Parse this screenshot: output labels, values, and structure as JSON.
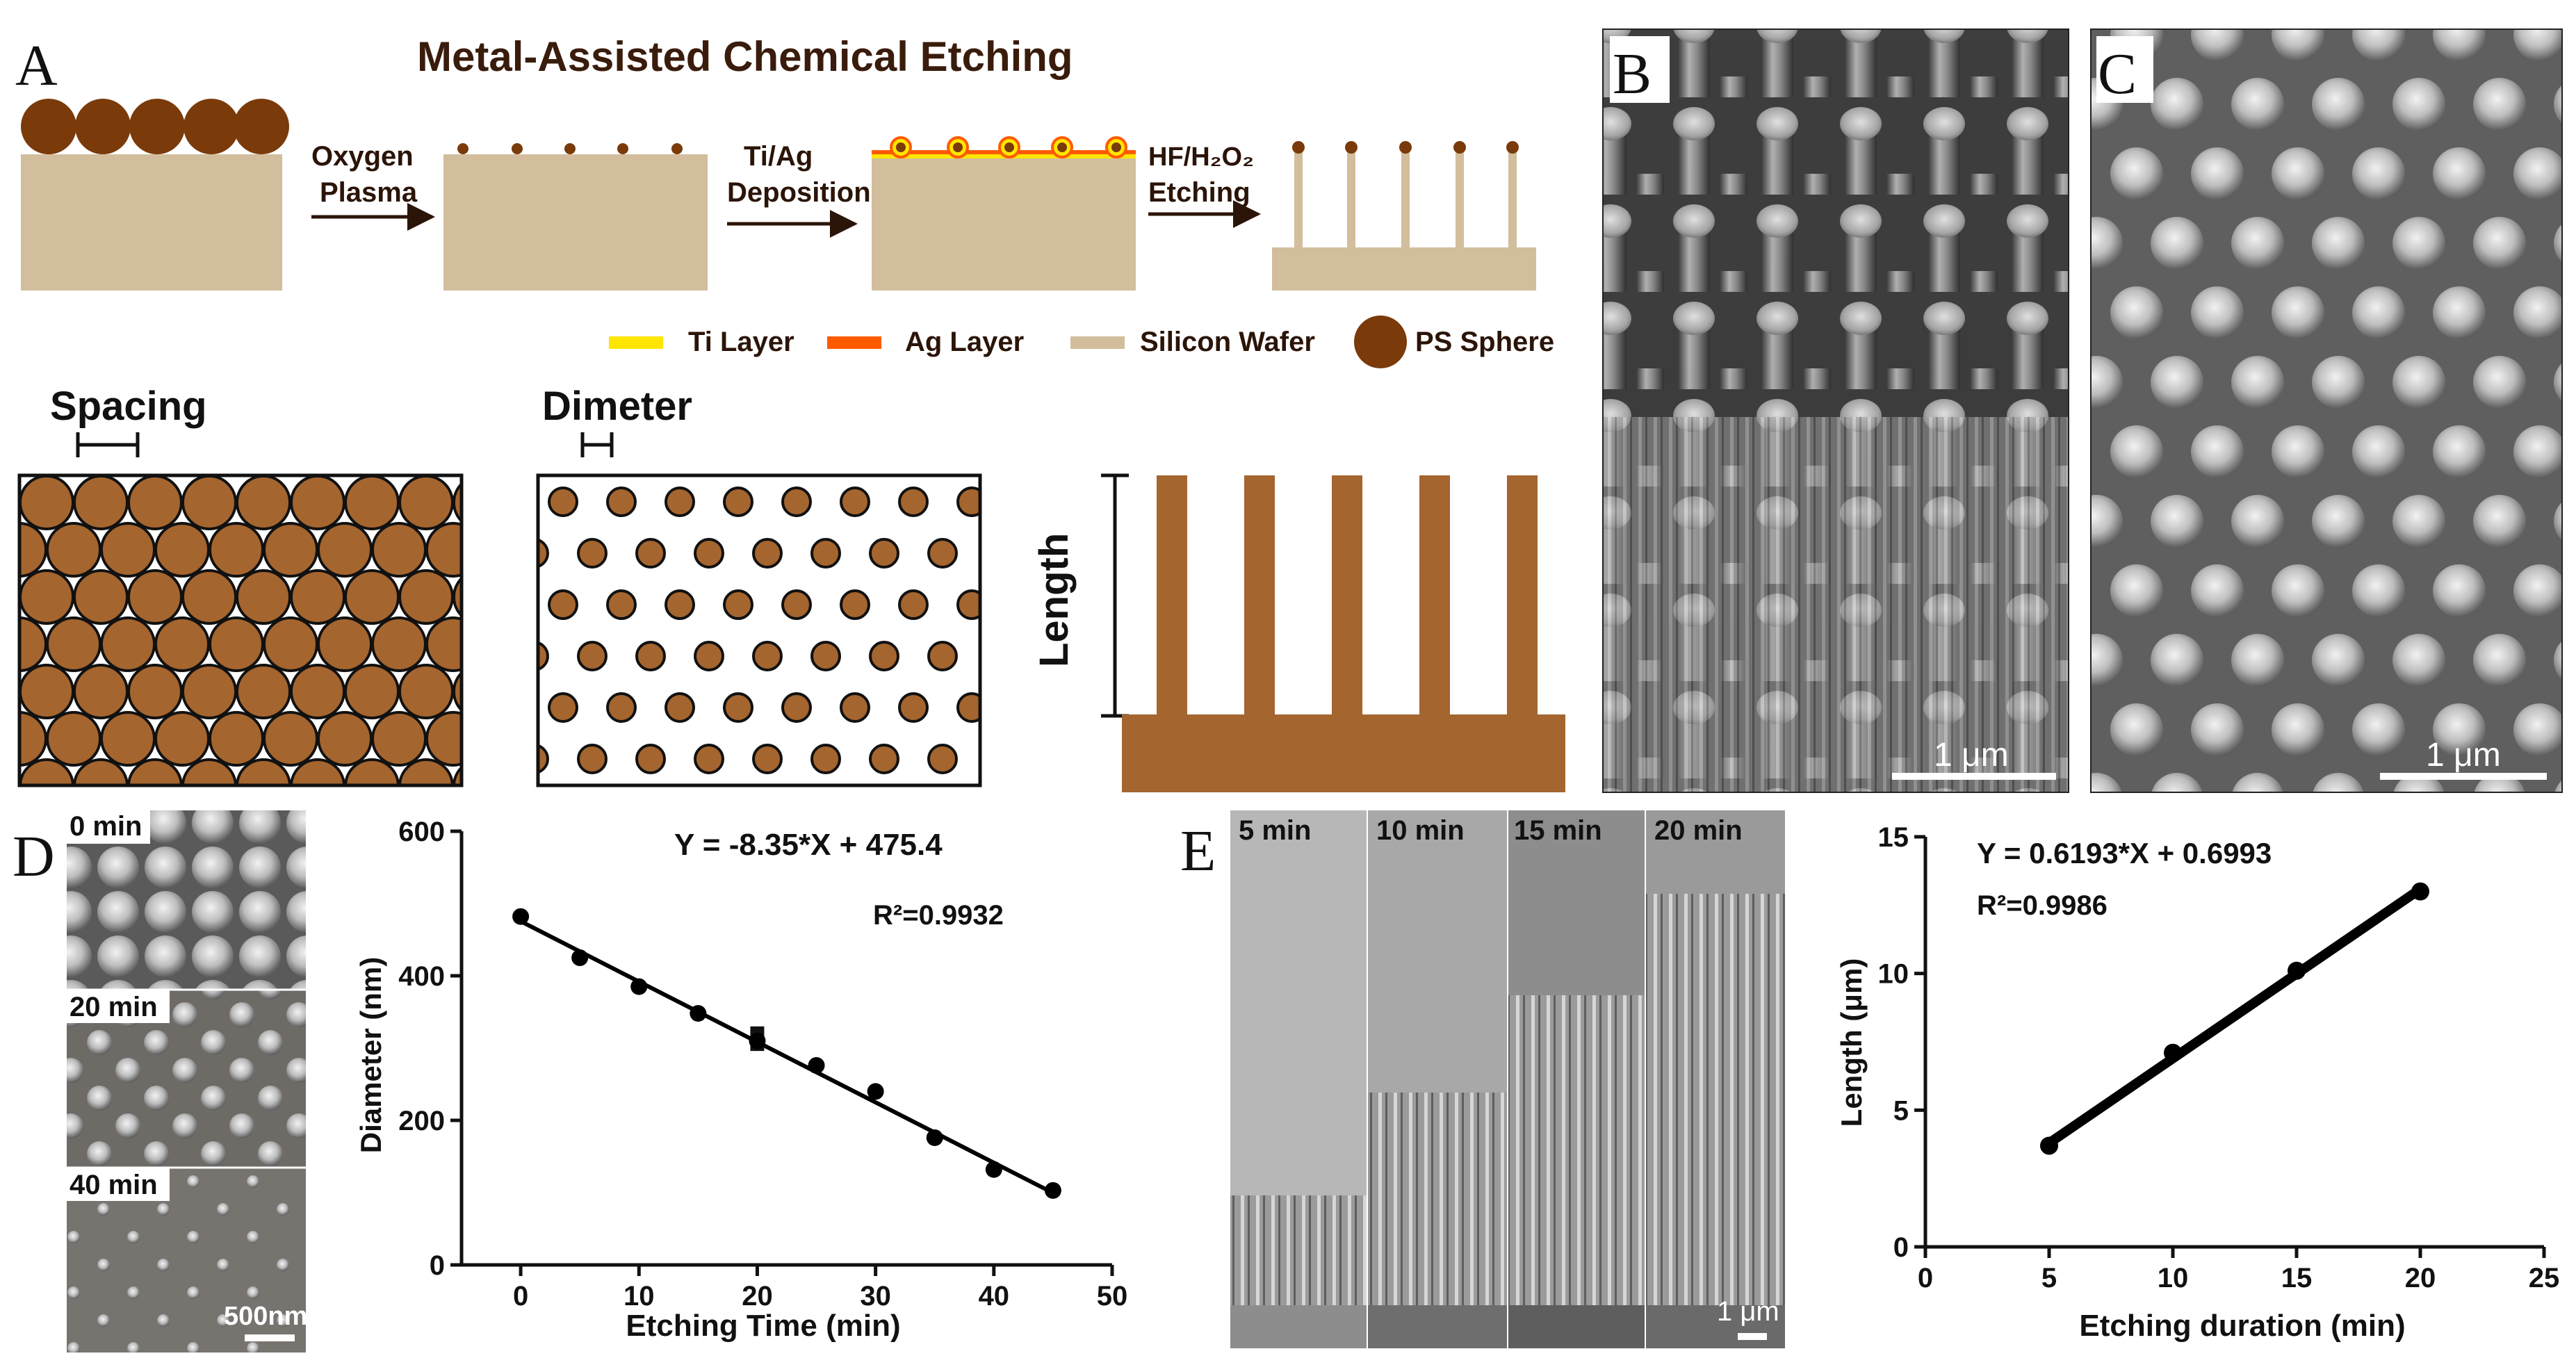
{
  "panels": {
    "a": "A",
    "b": "B",
    "c": "C",
    "d": "D",
    "e": "E"
  },
  "title": "Metal-Assisted Chemical Etching",
  "steps": {
    "s1": [
      "Oxygen",
      "Plasma"
    ],
    "s2": [
      "Ti/Ag",
      "Deposition"
    ],
    "s3": [
      "HF/H₂O₂",
      "Etching"
    ]
  },
  "legend": {
    "ti": "Ti Layer",
    "ag": "Ag Layer",
    "si": "Silicon Wafer",
    "ps": "PS Sphere"
  },
  "labels": {
    "spacing": "Spacing",
    "dimeter": "Dimeter",
    "length": "Length"
  },
  "sem": {
    "scale_b": "1 μm",
    "scale_c": "1 μm",
    "d_times": [
      "0 min",
      "20 min",
      "40 min"
    ],
    "d_scale": "500nm",
    "e_times": [
      "5 min",
      "10 min",
      "15 min",
      "20 min"
    ],
    "e_scale": "1 μm"
  },
  "colors": {
    "ps": "#7a3a0a",
    "silicon": "#d2be9c",
    "brown_fill": "#a5652f",
    "ti": "#ffe600",
    "ag": "#ff5a00",
    "arrow": "#2b1408"
  },
  "chart_data": [
    {
      "type": "scatter",
      "xlabel": "Etching Time (min)",
      "ylabel": "Diameter (nm)",
      "xlim": [
        -5,
        50
      ],
      "ylim": [
        0,
        600
      ],
      "xticks": [
        0,
        10,
        20,
        30,
        40,
        50
      ],
      "yticks": [
        0,
        200,
        400,
        600
      ],
      "x": [
        0,
        5,
        10,
        15,
        20,
        25,
        30,
        35,
        40,
        45
      ],
      "y": [
        482,
        425,
        385,
        348,
        310,
        276,
        240,
        176,
        132,
        103
      ],
      "errorbars": [
        {
          "x": 20,
          "low": 296,
          "high": 330
        }
      ],
      "fit": {
        "slope": -8.35,
        "intercept": 475.4,
        "x_range": [
          0,
          45
        ]
      },
      "annotations": [
        "Y = -8.35*X + 475.4",
        "R²=0.9932"
      ]
    },
    {
      "type": "line",
      "xlabel": "Etching duration (min)",
      "ylabel": "Length  (μm)",
      "xlim": [
        0,
        25
      ],
      "ylim": [
        0,
        15
      ],
      "xticks": [
        0,
        5,
        10,
        15,
        20,
        25
      ],
      "yticks": [
        0,
        5,
        10,
        15
      ],
      "x": [
        5,
        10,
        15,
        20
      ],
      "y": [
        3.7,
        7.1,
        10.1,
        13.0
      ],
      "fit": {
        "slope": 0.6193,
        "intercept": 0.6993,
        "x_range": [
          5,
          20
        ]
      },
      "annotations": [
        "Y = 0.6193*X + 0.6993",
        "R²=0.9986"
      ]
    }
  ]
}
